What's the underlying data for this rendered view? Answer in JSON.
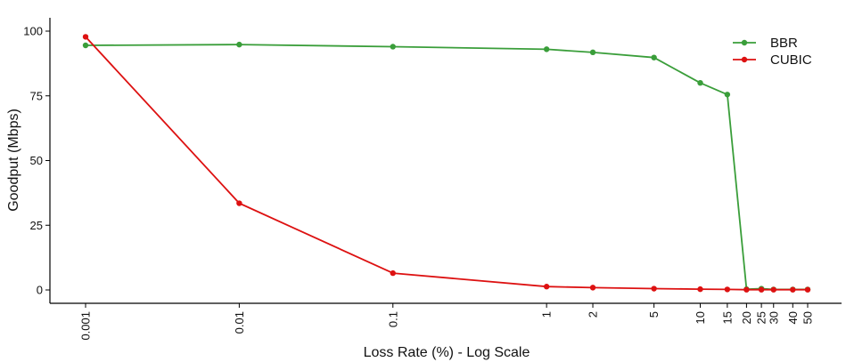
{
  "chart_data": {
    "type": "line",
    "title": "",
    "xlabel": "Loss Rate (%) - Log Scale",
    "ylabel": "Goodput (Mbps)",
    "x_scale": "log",
    "xlim": [
      0.001,
      50
    ],
    "ylim": [
      0,
      100
    ],
    "x_ticks": [
      0.001,
      0.01,
      0.1,
      1,
      2,
      5,
      10,
      15,
      20,
      25,
      30,
      40,
      50
    ],
    "x_tick_labels": [
      "0.001",
      "0.01",
      "0.1",
      "1",
      "2",
      "5",
      "10",
      "15",
      "20",
      "25",
      "30",
      "40",
      "50"
    ],
    "y_ticks": [
      0,
      25,
      50,
      75,
      100
    ],
    "y_tick_labels": [
      "0",
      "25",
      "50",
      "75",
      "100"
    ],
    "grid": false,
    "legend_position": "top-right",
    "x": [
      0.001,
      0.01,
      0.1,
      1,
      2,
      5,
      10,
      15,
      20,
      25,
      30,
      40,
      50
    ],
    "series": [
      {
        "name": "BBR",
        "color": "#3a9e3a",
        "values": [
          94.5,
          94.8,
          94.0,
          93.0,
          91.8,
          89.8,
          80.0,
          75.5,
          0.3,
          0.5,
          0.2,
          0.2,
          0.2
        ]
      },
      {
        "name": "CUBIC",
        "color": "#dd1111",
        "values": [
          97.8,
          33.5,
          6.5,
          1.3,
          0.9,
          0.5,
          0.3,
          0.2,
          0.1,
          0.1,
          0.1,
          0.1,
          0.1
        ]
      }
    ]
  }
}
